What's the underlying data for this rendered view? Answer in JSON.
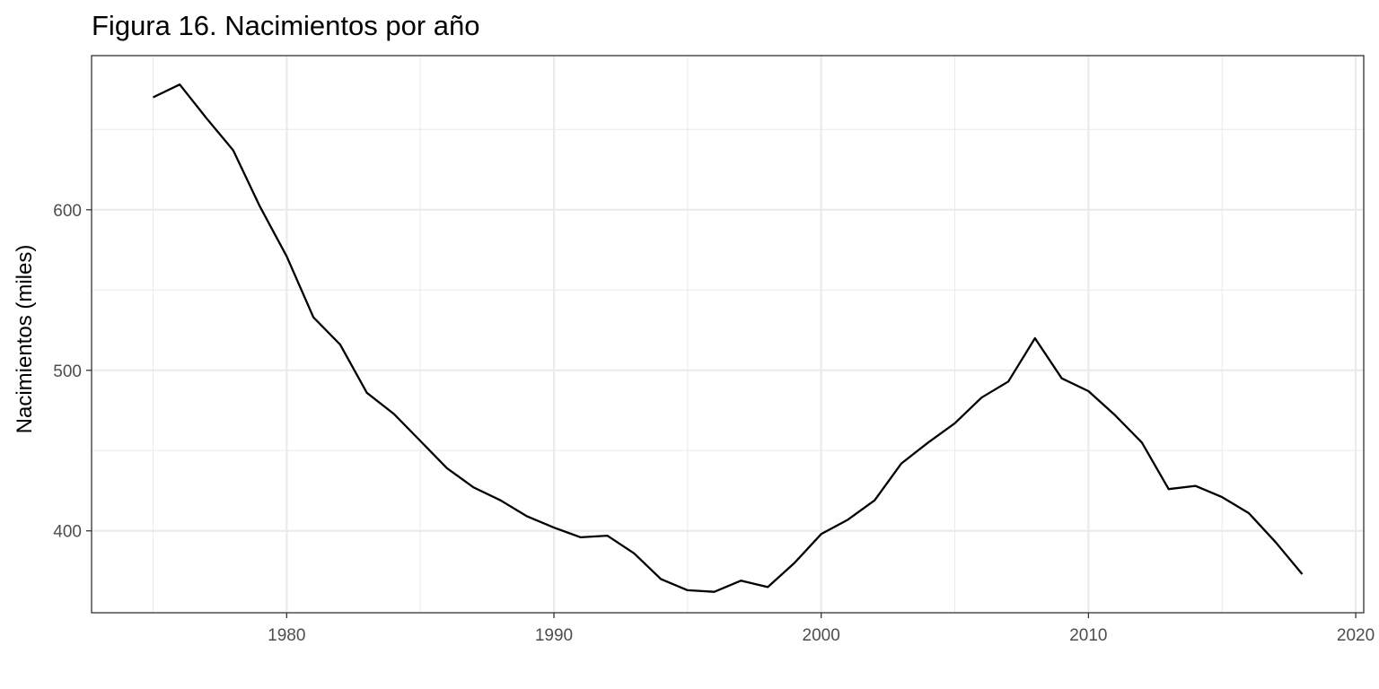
{
  "chart_data": {
    "type": "line",
    "title": "Figura 16. Nacimientos por año",
    "xlabel": "",
    "ylabel": "Nacimientos (miles)",
    "xlim": [
      1972.7,
      2020.3
    ],
    "ylim": [
      349,
      696
    ],
    "x_ticks": [
      1980,
      1990,
      2000,
      2010,
      2020
    ],
    "x_tick_labels": [
      "1980",
      "1990",
      "2000",
      "2010",
      "2020"
    ],
    "x_minor_ticks": [
      1975,
      1985,
      1995,
      2005,
      2015
    ],
    "y_ticks": [
      400,
      500,
      600
    ],
    "y_tick_labels": [
      "400",
      "500",
      "600"
    ],
    "y_minor_ticks": [
      450,
      550,
      650
    ],
    "grid": true,
    "line_color": "#000000",
    "series": [
      {
        "x": [
          1975,
          1976,
          1977,
          1978,
          1979,
          1980,
          1981,
          1982,
          1983,
          1984,
          1985,
          1986,
          1987,
          1988,
          1989,
          1990,
          1991,
          1992,
          1993,
          1994,
          1995,
          1996,
          1997,
          1998,
          1999,
          2000,
          2001,
          2002,
          2003,
          2004,
          2005,
          2006,
          2007,
          2008,
          2009,
          2010,
          2011,
          2012,
          2013,
          2014,
          2015,
          2016,
          2017,
          2018
        ],
        "values": [
          670,
          678,
          657,
          637,
          602,
          571,
          533,
          516,
          486,
          473,
          456,
          439,
          427,
          419,
          409,
          402,
          396,
          397,
          386,
          370,
          363,
          362,
          369,
          365,
          380,
          398,
          407,
          419,
          442,
          455,
          467,
          483,
          493,
          520,
          495,
          487,
          472,
          455,
          426,
          428,
          421,
          411,
          393,
          373
        ]
      }
    ]
  }
}
